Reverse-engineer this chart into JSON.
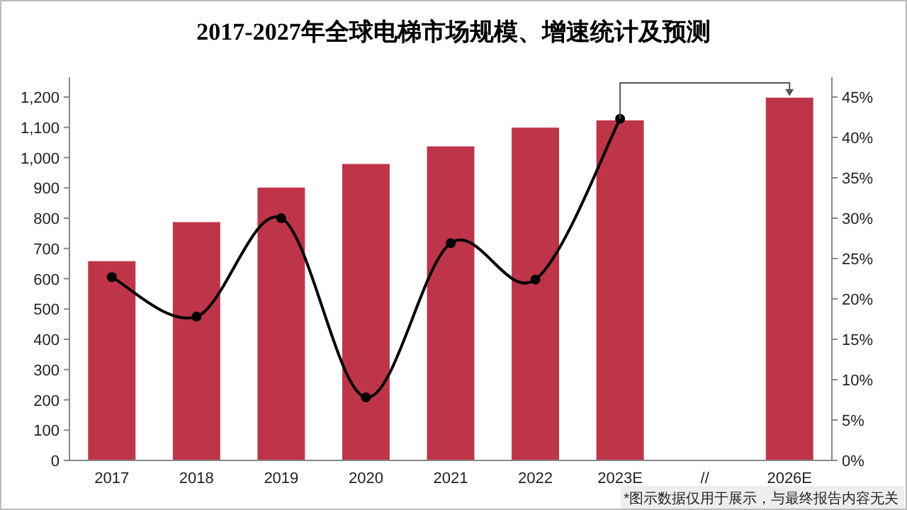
{
  "chart_data": {
    "type": "bar",
    "title": "2017-2027年全球电梯市场规模、增速统计及预测",
    "categories": [
      "2017",
      "2018",
      "2019",
      "2020",
      "2021",
      "2022",
      "2023E",
      "//",
      "2026E"
    ],
    "series": [
      {
        "color": "#be3549",
        "values": [
          658,
          787,
          901,
          979,
          1037,
          1099,
          1123,
          null,
          1198
        ]
      },
      {
        "type": "line",
        "axis": "y2",
        "color": "#000000",
        "marker": "circle",
        "values": [
          22.7,
          17.8,
          30.0,
          7.8,
          26.9,
          22.4,
          42.3,
          null,
          null
        ]
      }
    ],
    "ylim": [
      0,
      1200
    ],
    "yticks": [
      0,
      100,
      200,
      300,
      400,
      500,
      600,
      700,
      800,
      900,
      {
        "value": 1000,
        "label": "1,000"
      },
      {
        "value": 1100,
        "label": "1,100"
      },
      {
        "value": 1200,
        "label": "1,200"
      }
    ],
    "y2lim": [
      0,
      45
    ],
    "y2ticks": [
      {
        "value": 0,
        "label": "0%"
      },
      {
        "value": 5,
        "label": "5%"
      },
      {
        "value": 10,
        "label": "10%"
      },
      {
        "value": 15,
        "label": "15%"
      },
      {
        "value": 20,
        "label": "20%"
      },
      {
        "value": 25,
        "label": "25%"
      },
      {
        "value": 30,
        "label": "30%"
      },
      {
        "value": 35,
        "label": "35%"
      },
      {
        "value": 40,
        "label": "40%"
      },
      {
        "value": 45,
        "label": "45%"
      }
    ],
    "grid": false,
    "annotations": [
      "*图示数据仅用于展示，与最终报告内容无关"
    ]
  }
}
